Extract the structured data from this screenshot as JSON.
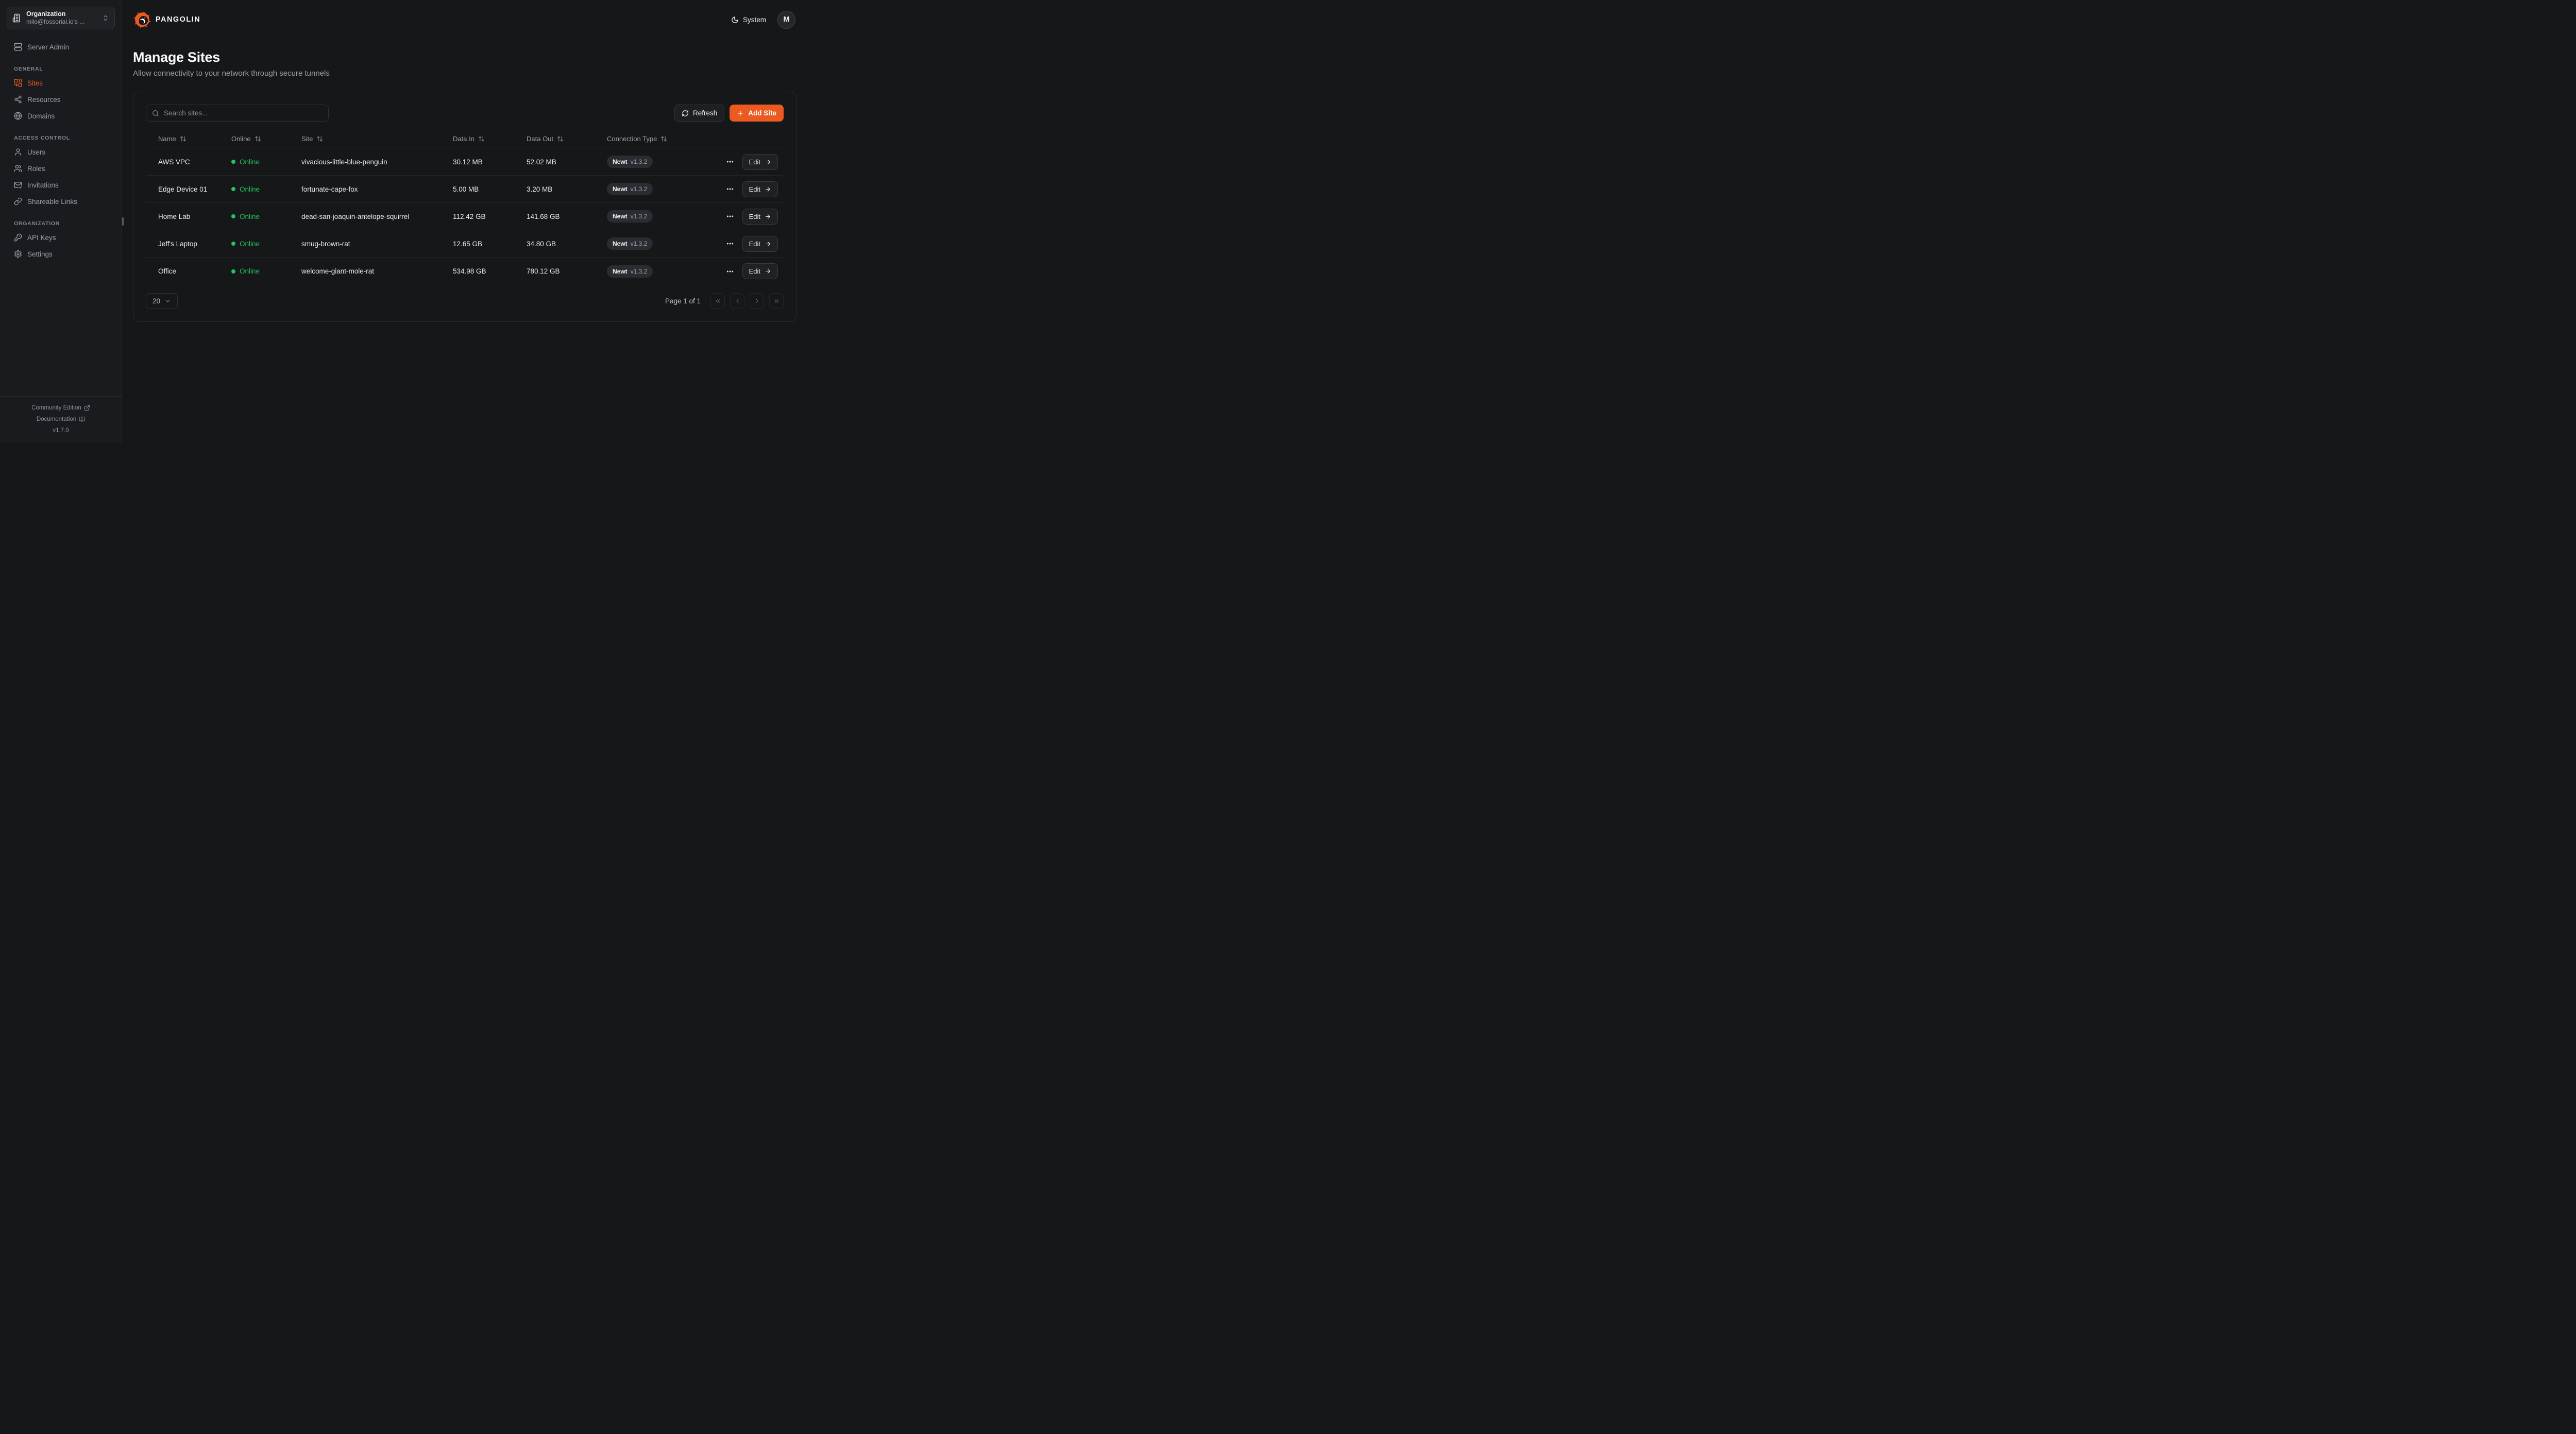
{
  "colors": {
    "accent": "#EB5A21",
    "online": "#22c55e"
  },
  "org_switcher": {
    "label": "Organization",
    "value": "milo@fossorial.io's ..."
  },
  "sidebar": {
    "server_admin": "Server Admin",
    "sections": [
      {
        "label": "GENERAL",
        "items": [
          {
            "label": "Sites",
            "icon": "combine",
            "active": true
          },
          {
            "label": "Resources",
            "icon": "share2",
            "active": false
          },
          {
            "label": "Domains",
            "icon": "globe",
            "active": false
          }
        ]
      },
      {
        "label": "ACCESS CONTROL",
        "items": [
          {
            "label": "Users",
            "icon": "user",
            "active": false
          },
          {
            "label": "Roles",
            "icon": "users",
            "active": false
          },
          {
            "label": "Invitations",
            "icon": "mailcheck",
            "active": false
          },
          {
            "label": "Shareable Links",
            "icon": "link",
            "active": false
          }
        ]
      },
      {
        "label": "ORGANIZATION",
        "items": [
          {
            "label": "API Keys",
            "icon": "key",
            "active": false
          },
          {
            "label": "Settings",
            "icon": "settings",
            "active": false
          }
        ]
      }
    ],
    "footer": {
      "community": "Community Edition",
      "docs": "Documentation",
      "version": "v1.7.0"
    }
  },
  "topbar": {
    "brand": "PANGOLIN",
    "theme_label": "System",
    "avatar_initial": "M"
  },
  "page": {
    "title": "Manage Sites",
    "subtitle": "Allow connectivity to your network through secure tunnels"
  },
  "toolbar": {
    "search_placeholder": "Search sites...",
    "refresh": "Refresh",
    "add_site": "Add Site"
  },
  "table": {
    "columns": [
      "Name",
      "Online",
      "Site",
      "Data In",
      "Data Out",
      "Connection Type"
    ],
    "edit_label": "Edit",
    "rows": [
      {
        "name": "AWS VPC",
        "status": "Online",
        "site": "vivacious-little-blue-penguin",
        "data_in": "30.12 MB",
        "data_out": "52.02 MB",
        "type": "Newt",
        "version": "v1.3.2"
      },
      {
        "name": "Edge Device 01",
        "status": "Online",
        "site": "fortunate-cape-fox",
        "data_in": "5.00 MB",
        "data_out": "3.20 MB",
        "type": "Newt",
        "version": "v1.3.2"
      },
      {
        "name": "Home Lab",
        "status": "Online",
        "site": "dead-san-joaquin-antelope-squirrel",
        "data_in": "112.42 GB",
        "data_out": "141.68 GB",
        "type": "Newt",
        "version": "v1.3.2"
      },
      {
        "name": "Jeff's Laptop",
        "status": "Online",
        "site": "smug-brown-rat",
        "data_in": "12.65 GB",
        "data_out": "34.80 GB",
        "type": "Newt",
        "version": "v1.3.2"
      },
      {
        "name": "Office",
        "status": "Online",
        "site": "welcome-giant-mole-rat",
        "data_in": "534.98 GB",
        "data_out": "780.12 GB",
        "type": "Newt",
        "version": "v1.3.2"
      }
    ]
  },
  "pagination": {
    "page_size": "20",
    "page_info": "Page 1 of 1"
  }
}
